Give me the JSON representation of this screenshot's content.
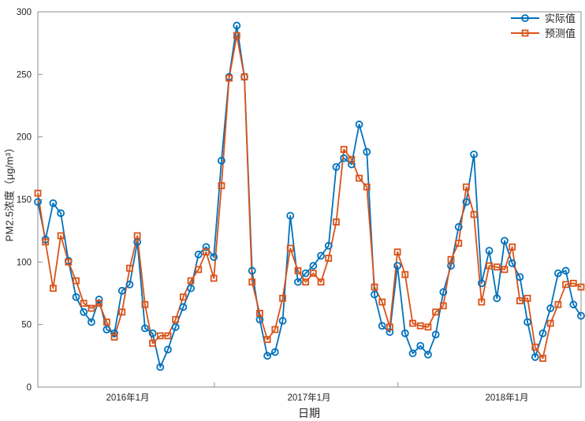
{
  "chart_data": {
    "type": "line",
    "title": "",
    "xlabel": "日期",
    "ylabel": "PM2.5浓度（μg/m³）",
    "ylim": [
      0,
      300
    ],
    "yticks": [
      0,
      50,
      100,
      150,
      200,
      250,
      300
    ],
    "x_axis": {
      "tick_labels": [
        {
          "label": "2016年1月",
          "pos": 0.1655
        },
        {
          "label": "2017年1月",
          "pos": 0.4993
        },
        {
          "label": "2018年1月",
          "pos": 0.8636
        }
      ],
      "tick_marks": [
        0.325,
        0.663,
        1.0
      ]
    },
    "grid": false,
    "legend_position": "top-right",
    "series": [
      {
        "name": "实际值",
        "color": "#0072BD",
        "marker": "circle",
        "values": [
          148,
          118,
          147,
          139,
          101,
          72,
          60,
          52,
          70,
          46,
          43,
          77,
          82,
          116,
          47,
          43,
          16,
          30,
          48,
          64,
          79,
          106,
          112,
          104,
          181,
          248,
          289,
          248,
          93,
          54,
          25,
          28,
          53,
          137,
          84,
          91,
          97,
          105,
          113,
          176,
          183,
          178,
          210,
          188,
          74,
          49,
          44,
          97,
          43,
          27,
          33,
          26,
          42,
          76,
          97,
          128,
          148,
          186,
          83,
          109,
          71,
          117,
          99,
          88,
          52,
          24,
          43,
          63,
          91,
          93,
          66,
          57
        ]
      },
      {
        "name": "预测值",
        "color": "#D95319",
        "marker": "square",
        "values": [
          155,
          116,
          79,
          121,
          100,
          85,
          67,
          63,
          67,
          52,
          40,
          60,
          95,
          121,
          66,
          35,
          41,
          41,
          54,
          72,
          85,
          94,
          108,
          87,
          161,
          247,
          281,
          248,
          84,
          59,
          38,
          46,
          71,
          111,
          93,
          84,
          91,
          84,
          103,
          132,
          190,
          182,
          167,
          160,
          80,
          68,
          48,
          108,
          90,
          51,
          49,
          48,
          60,
          65,
          102,
          115,
          160,
          138,
          68,
          97,
          96,
          94,
          112,
          69,
          71,
          32,
          23,
          51,
          66,
          82,
          83,
          80
        ]
      }
    ],
    "axis_color": "#8c8c8c",
    "text_color": "#262626"
  }
}
